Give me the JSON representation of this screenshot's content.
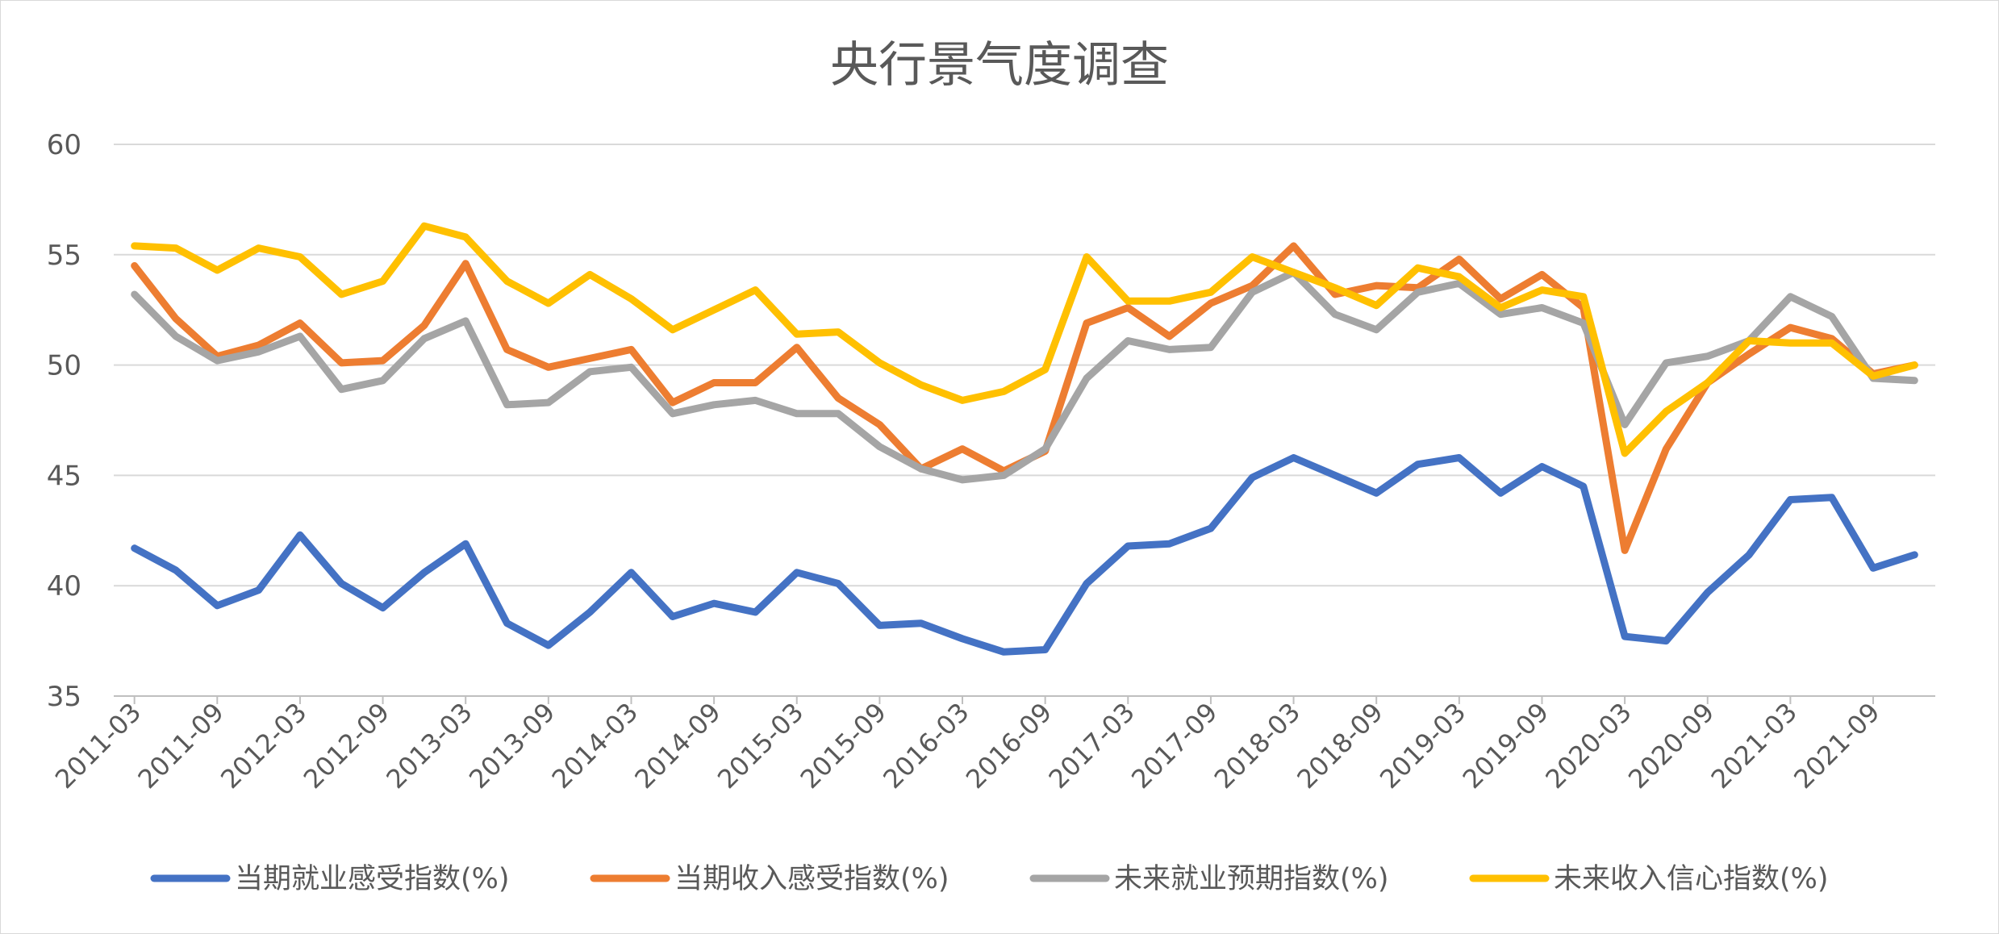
{
  "chart_data": {
    "type": "line",
    "title": "央行景气度调查",
    "ylim": [
      35,
      60
    ],
    "yticks": [
      35,
      40,
      45,
      50,
      55,
      60
    ],
    "grid": true,
    "legend_position": "bottom",
    "x": [
      "2011-03",
      "2011-06",
      "2011-09",
      "2011-12",
      "2012-03",
      "2012-06",
      "2012-09",
      "2012-12",
      "2013-03",
      "2013-06",
      "2013-09",
      "2013-12",
      "2014-03",
      "2014-06",
      "2014-09",
      "2014-12",
      "2015-03",
      "2015-06",
      "2015-09",
      "2015-12",
      "2016-03",
      "2016-06",
      "2016-09",
      "2016-12",
      "2017-03",
      "2017-06",
      "2017-09",
      "2017-12",
      "2018-03",
      "2018-06",
      "2018-09",
      "2018-12",
      "2019-03",
      "2019-06",
      "2019-09",
      "2019-12",
      "2020-03",
      "2020-06",
      "2020-09",
      "2020-12",
      "2021-03",
      "2021-06",
      "2021-09",
      "2021-12"
    ],
    "xtick_labels": [
      "2011-03",
      "2011-09",
      "2012-03",
      "2012-09",
      "2013-03",
      "2013-09",
      "2014-03",
      "2014-09",
      "2015-03",
      "2015-09",
      "2016-03",
      "2016-09",
      "2017-03",
      "2017-09",
      "2018-03",
      "2018-09",
      "2019-03",
      "2019-09",
      "2020-03",
      "2020-09",
      "2021-03",
      "2021-09"
    ],
    "series": [
      {
        "name": "当期就业感受指数(%)",
        "color": "#4472c4",
        "values": [
          41.7,
          40.7,
          39.1,
          39.8,
          42.3,
          40.1,
          39.0,
          40.6,
          41.9,
          38.3,
          37.3,
          38.8,
          40.6,
          38.6,
          39.2,
          38.8,
          40.6,
          40.1,
          38.2,
          38.3,
          37.6,
          37.0,
          37.1,
          40.1,
          41.8,
          41.9,
          42.6,
          44.9,
          45.8,
          45.0,
          44.2,
          45.5,
          45.8,
          44.2,
          45.4,
          44.5,
          37.7,
          37.5,
          39.7,
          41.4,
          43.9,
          44.0,
          40.8,
          41.4
        ]
      },
      {
        "name": "当期收入感受指数(%)",
        "color": "#ed7d31",
        "values": [
          54.5,
          52.1,
          50.4,
          50.9,
          51.9,
          50.1,
          50.2,
          51.8,
          54.6,
          50.7,
          49.9,
          50.3,
          50.7,
          48.3,
          49.2,
          49.2,
          50.8,
          48.5,
          47.3,
          45.3,
          46.2,
          45.2,
          46.1,
          51.9,
          52.6,
          51.3,
          52.8,
          53.6,
          55.4,
          53.2,
          53.6,
          53.5,
          54.8,
          53.0,
          54.1,
          52.6,
          41.6,
          46.2,
          49.2,
          50.5,
          51.7,
          51.2,
          49.6,
          50.0
        ]
      },
      {
        "name": "未来就业预期指数(%)",
        "color": "#a5a5a5",
        "values": [
          53.2,
          51.3,
          50.2,
          50.6,
          51.3,
          48.9,
          49.3,
          51.2,
          52.0,
          48.2,
          48.3,
          49.7,
          49.9,
          47.8,
          48.2,
          48.4,
          47.8,
          47.8,
          46.3,
          45.3,
          44.8,
          45.0,
          46.2,
          49.4,
          51.1,
          50.7,
          50.8,
          53.3,
          54.2,
          52.3,
          51.6,
          53.3,
          53.7,
          52.3,
          52.6,
          51.9,
          47.3,
          50.1,
          50.4,
          51.1,
          53.1,
          52.2,
          49.4,
          49.3
        ]
      },
      {
        "name": "未来收入信心指数(%)",
        "color": "#ffc000",
        "values": [
          55.4,
          55.3,
          54.3,
          55.3,
          54.9,
          53.2,
          53.8,
          56.3,
          55.8,
          53.8,
          52.8,
          54.1,
          53.0,
          51.6,
          52.5,
          53.4,
          51.4,
          51.5,
          50.1,
          49.1,
          48.4,
          48.8,
          49.8,
          54.9,
          52.9,
          52.9,
          53.3,
          54.9,
          54.2,
          53.5,
          52.7,
          54.4,
          54.0,
          52.6,
          53.4,
          53.1,
          46.0,
          47.9,
          49.2,
          51.1,
          51.0,
          51.0,
          49.5,
          50.0
        ]
      }
    ]
  }
}
